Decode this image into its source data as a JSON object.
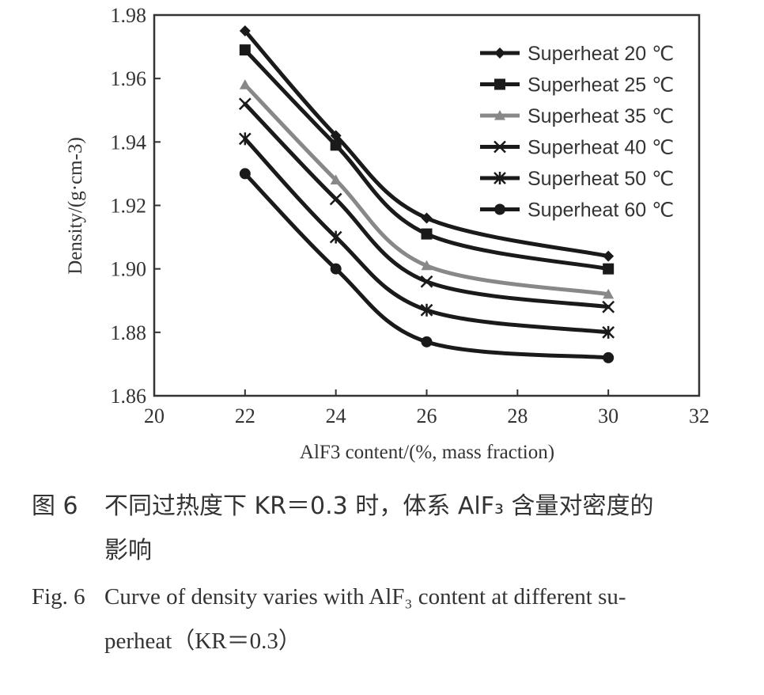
{
  "chart_data": {
    "type": "line",
    "xlabel": "AlF3 content/(%, mass fraction)",
    "ylabel": "Density/(g·cm-3)",
    "xlim": [
      20,
      32
    ],
    "ylim": [
      1.86,
      1.98
    ],
    "xticks": [
      "20",
      "22",
      "24",
      "26",
      "28",
      "30",
      "32"
    ],
    "yticks": [
      "1.86",
      "1.88",
      "1.90",
      "1.92",
      "1.94",
      "1.96",
      "1.98"
    ],
    "legend_position": "top-right",
    "grid": false,
    "x": [
      22,
      24,
      26,
      30
    ],
    "series": [
      {
        "name": "Superheat 20 ℃",
        "marker": "diamond",
        "color": "#1a1a1a",
        "values": [
          1.975,
          1.942,
          1.916,
          1.904
        ]
      },
      {
        "name": "Superheat 25 ℃",
        "marker": "square",
        "color": "#1a1a1a",
        "values": [
          1.969,
          1.939,
          1.911,
          1.9
        ]
      },
      {
        "name": "Superheat 35 ℃",
        "marker": "triangle",
        "color": "#888888",
        "values": [
          1.958,
          1.928,
          1.901,
          1.892
        ]
      },
      {
        "name": "Superheat 40 ℃",
        "marker": "x",
        "color": "#1a1a1a",
        "values": [
          1.952,
          1.922,
          1.896,
          1.888
        ]
      },
      {
        "name": "Superheat 50 ℃",
        "marker": "asterisk",
        "color": "#1a1a1a",
        "values": [
          1.941,
          1.91,
          1.887,
          1.88
        ]
      },
      {
        "name": "Superheat 60 ℃",
        "marker": "circle",
        "color": "#1a1a1a",
        "values": [
          1.93,
          1.9,
          1.877,
          1.872
        ]
      }
    ]
  },
  "caption_cn": {
    "label": "图 6",
    "line1": "不同过热度下 KR＝0.3 时，体系 AlF₃ 含量对密度的",
    "line2": "影响"
  },
  "caption_en": {
    "label": "Fig. 6",
    "line1": "Curve of density varies with AlF₃ content at different su-",
    "line2": "perheat（KR＝0.3）"
  }
}
